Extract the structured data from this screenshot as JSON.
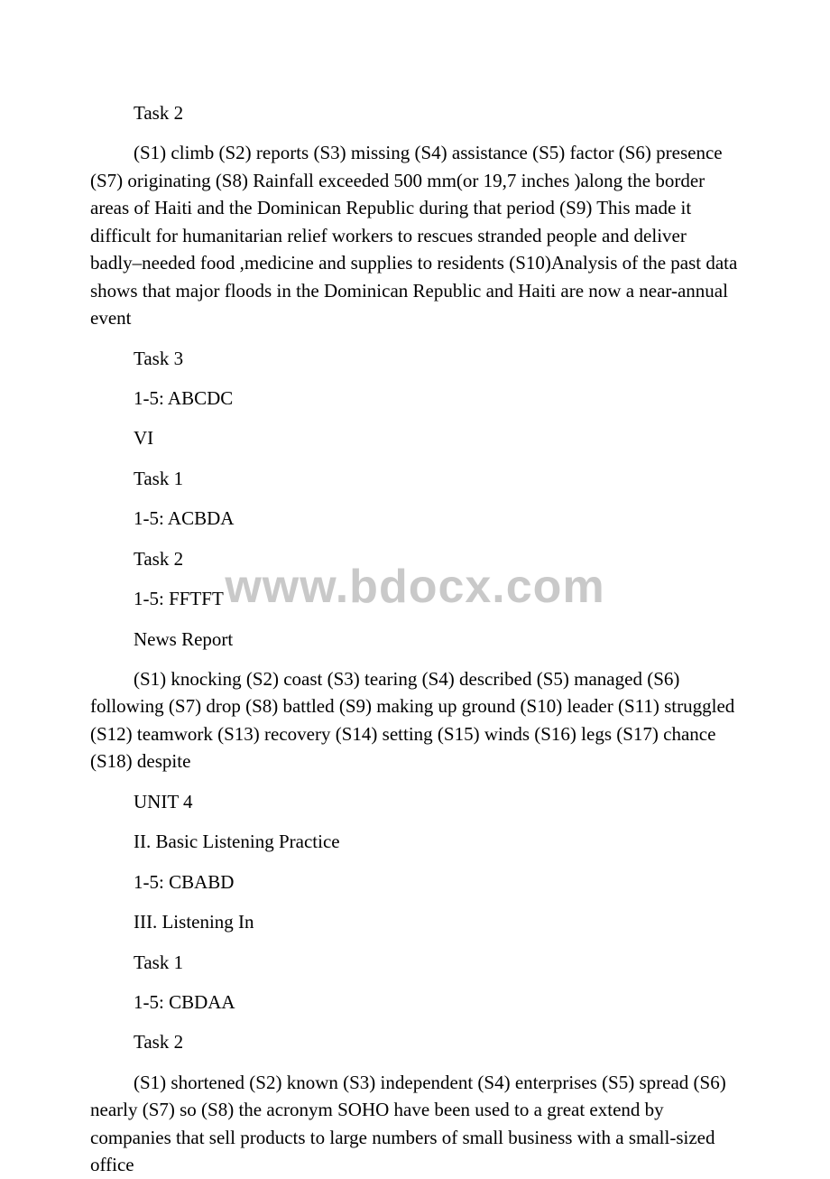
{
  "watermark": "www.bdocx.com",
  "lines": {
    "l1": "Task 2",
    "l2": "(S1) climb (S2) reports (S3) missing (S4) assistance (S5) factor (S6) presence (S7) originating (S8) Rainfall exceeded 500 mm(or 19,7 inches )along the border areas of Haiti and the Dominican Republic during that period (S9) This made it difficult for humanitarian relief workers to rescues stranded people and deliver badly–needed food ,medicine and supplies to residents (S10)Analysis of the past data shows that major floods in the Dominican Republic and Haiti are now a near-annual event",
    "l3": "Task 3",
    "l4": "1-5: ABCDC",
    "l5": "VI",
    "l6": "Task 1",
    "l7": "1-5: ACBDA",
    "l8": "Task 2",
    "l9": "1-5: FFTFT",
    "l10": "News Report",
    "l11": "(S1) knocking (S2) coast (S3) tearing (S4) described (S5) managed (S6) following (S7) drop (S8) battled (S9) making up ground (S10) leader (S11) struggled (S12) teamwork (S13) recovery (S14) setting (S15) winds (S16) legs (S17) chance (S18) despite",
    "l12": "UNIT 4",
    "l13": "II. Basic Listening Practice",
    "l14": "1-5: CBABD",
    "l15": "III. Listening In",
    "l16": "Task 1",
    "l17": "1-5: CBDAA",
    "l18": "Task 2",
    "l19": "(S1) shortened (S2) known (S3) independent (S4) enterprises (S5) spread (S6) nearly (S7) so (S8) the acronym SOHO have been used to a great extend by companies that sell products to large numbers of small business with a small-sized office"
  }
}
